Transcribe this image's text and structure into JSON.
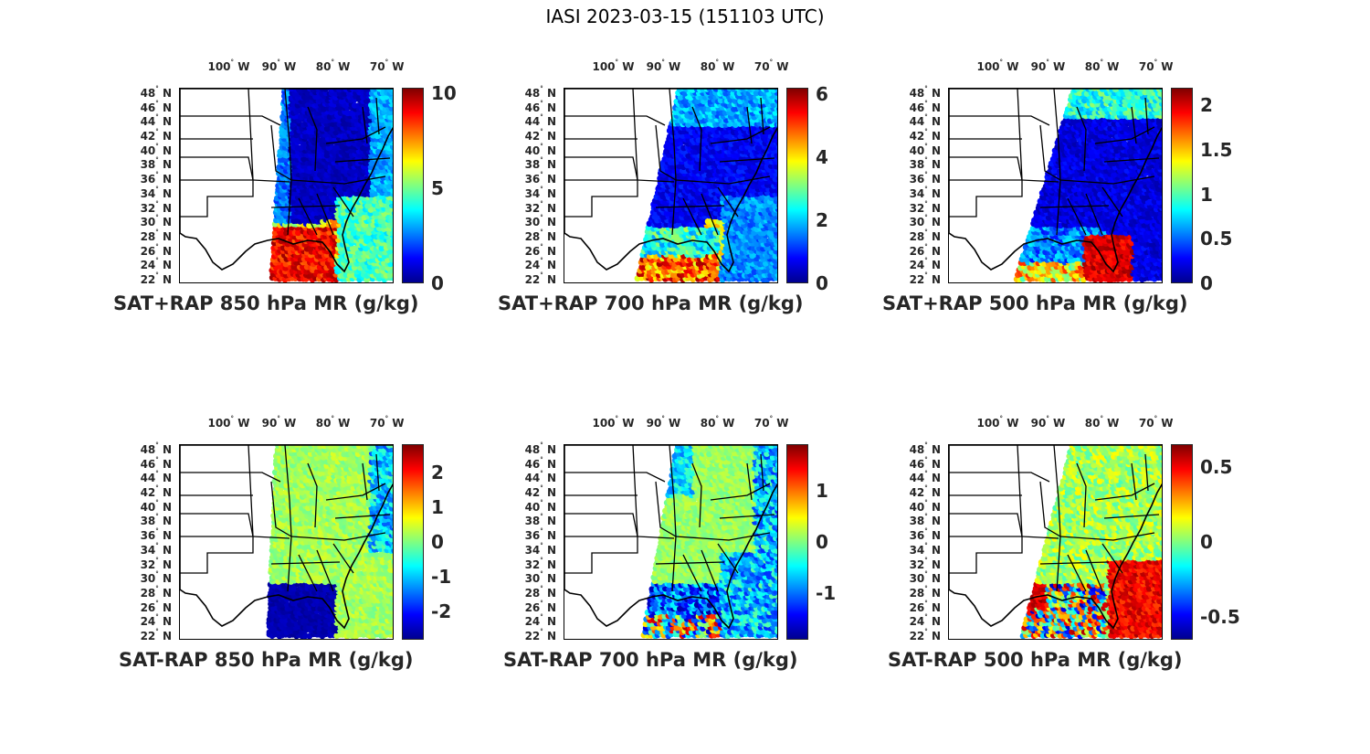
{
  "figure": {
    "title": "IASI 2023-03-15 (151103 UTC)"
  },
  "map_axes": {
    "lon_labels": [
      "100",
      "90",
      "80",
      "70"
    ],
    "lon_suffix": "W",
    "lat_labels": [
      "48",
      "46",
      "44",
      "42",
      "40",
      "38",
      "36",
      "34",
      "32",
      "30",
      "28",
      "26",
      "24",
      "22"
    ],
    "lat_suffix": "N",
    "degree_symbol": "°"
  },
  "colormap": [
    "#00008f",
    "#0000ff",
    "#0080ff",
    "#00ffff",
    "#80ff80",
    "#ffff00",
    "#ff8000",
    "#ff0000",
    "#800000"
  ],
  "panels": [
    {
      "id": "p1",
      "title": "SAT+RAP 850 hPa MR (g/kg)",
      "cbar_min": 0,
      "cbar_max": 10.3,
      "cbar_ticks": [
        "10",
        "5",
        "0"
      ],
      "cbar_tick_values": [
        10,
        5,
        0
      ],
      "kind": "total850"
    },
    {
      "id": "p2",
      "title": "SAT+RAP 700 hPa MR (g/kg)",
      "cbar_min": 0,
      "cbar_max": 6.2,
      "cbar_ticks": [
        "6",
        "4",
        "2",
        "0"
      ],
      "cbar_tick_values": [
        6,
        4,
        2,
        0
      ],
      "kind": "total700"
    },
    {
      "id": "p3",
      "title": "SAT+RAP 500 hPa MR (g/kg)",
      "cbar_min": 0,
      "cbar_max": 2.2,
      "cbar_ticks": [
        "2",
        "1.5",
        "1",
        "0.5",
        "0"
      ],
      "cbar_tick_values": [
        2,
        1.5,
        1,
        0.5,
        0
      ],
      "kind": "total500"
    },
    {
      "id": "p4",
      "title": "SAT-RAP 850 hPa MR (g/kg)",
      "cbar_min": -2.8,
      "cbar_max": 2.8,
      "cbar_ticks": [
        "2",
        "1",
        "0",
        "-1",
        "-2"
      ],
      "cbar_tick_values": [
        2,
        1,
        0,
        -1,
        -2
      ],
      "kind": "diff850"
    },
    {
      "id": "p5",
      "title": "SAT-RAP 700 hPa MR (g/kg)",
      "cbar_min": -1.9,
      "cbar_max": 1.9,
      "cbar_ticks": [
        "1",
        "0",
        "-1"
      ],
      "cbar_tick_values": [
        1,
        0,
        -1
      ],
      "kind": "diff700"
    },
    {
      "id": "p6",
      "title": "SAT-RAP 500 hPa MR (g/kg)",
      "cbar_min": -0.65,
      "cbar_max": 0.65,
      "cbar_ticks": [
        "0.5",
        "0",
        "-0.5"
      ],
      "cbar_tick_values": [
        0.5,
        0,
        -0.5
      ],
      "kind": "diff500"
    }
  ]
}
